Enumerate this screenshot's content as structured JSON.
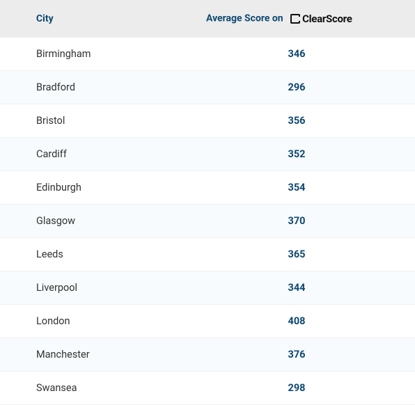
{
  "table": {
    "type": "table",
    "header": {
      "city_label": "City",
      "score_prefix": "Average Score on",
      "brand_name": "ClearScore",
      "header_bg": "#ececec",
      "header_text_color": "#0f4871",
      "header_fontsize": 14
    },
    "columns": [
      "City",
      "Average Score on ClearScore"
    ],
    "rows": [
      {
        "city": "Birmingham",
        "score": "346"
      },
      {
        "city": "Bradford",
        "score": "296"
      },
      {
        "city": "Bristol",
        "score": "356"
      },
      {
        "city": "Cardiff",
        "score": "352"
      },
      {
        "city": "Edinburgh",
        "score": "354"
      },
      {
        "city": "Glasgow",
        "score": "370"
      },
      {
        "city": "Leeds",
        "score": "365"
      },
      {
        "city": "Liverpool",
        "score": "344"
      },
      {
        "city": "London",
        "score": "408"
      },
      {
        "city": "Manchester",
        "score": "376"
      },
      {
        "city": "Swansea",
        "score": "298"
      }
    ],
    "styling": {
      "row_bg": "#ffffff",
      "row_alt_bg": "#f7fbfd",
      "row_border_color": "#f0f0f0",
      "city_text_color": "#333333",
      "score_text_color": "#0f4871",
      "city_fontsize": 14.5,
      "score_fontsize": 14.5,
      "score_fontweight": 700,
      "brand_text_color": "#111111"
    }
  }
}
